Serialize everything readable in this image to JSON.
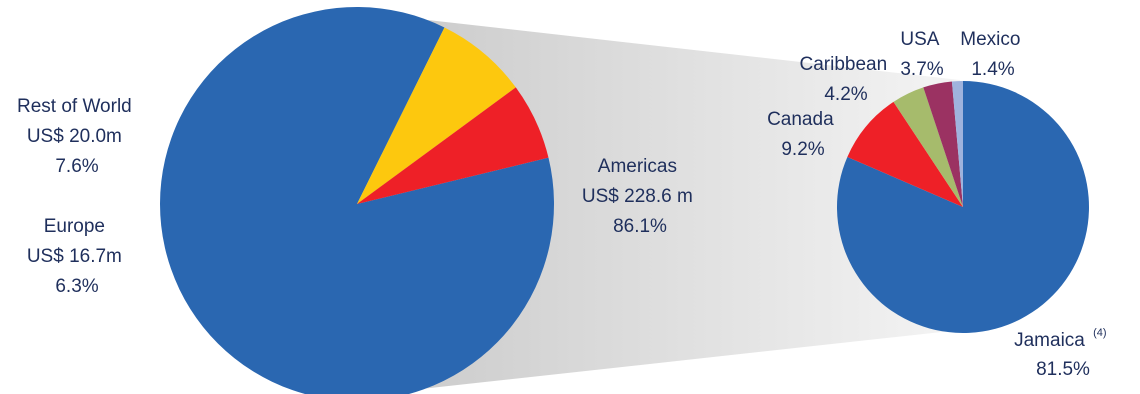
{
  "chart_data": [
    {
      "type": "pie",
      "slices": [
        {
          "label": "Americas",
          "amount": "US$ 228.6 m",
          "percent": "86.1%",
          "value": 86.1,
          "color": "#2a67b1"
        },
        {
          "label": "Rest of World",
          "amount": "US$ 20.0m",
          "percent": "7.6%",
          "value": 7.6,
          "color": "#fdc80e"
        },
        {
          "label": "Europe",
          "amount": "US$ 16.7m",
          "percent": "6.3%",
          "value": 6.3,
          "color": "#ee2027"
        }
      ]
    },
    {
      "type": "pie",
      "slices": [
        {
          "label": "Jamaica",
          "footnote": "(4)",
          "percent": "81.5%",
          "value": 81.5,
          "color": "#2a67b1"
        },
        {
          "label": "Canada",
          "percent": "9.2%",
          "value": 9.2,
          "color": "#ee2027"
        },
        {
          "label": "Caribbean",
          "percent": "4.2%",
          "value": 4.2,
          "color": "#a6bb6c"
        },
        {
          "label": "USA",
          "percent": "3.7%",
          "value": 3.7,
          "color": "#9b3262"
        },
        {
          "label": "Mexico",
          "percent": "1.4%",
          "value": 1.4,
          "color": "#9fb3dd"
        }
      ]
    }
  ]
}
